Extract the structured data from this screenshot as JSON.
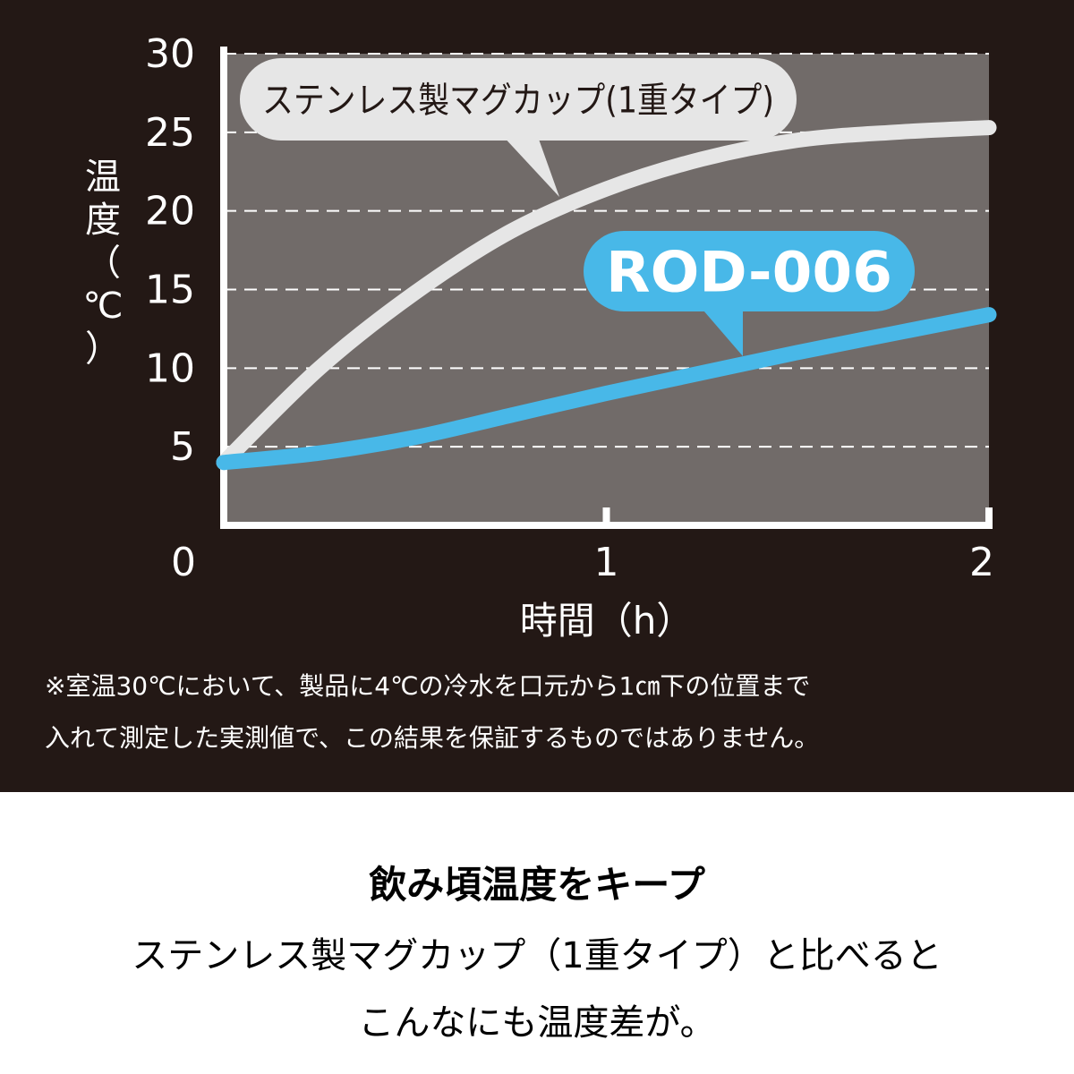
{
  "chart_data": {
    "type": "line",
    "xlabel": "時間（h）",
    "ylabel_chars": [
      "温",
      "度",
      "（",
      "℃",
      "）"
    ],
    "xlim": [
      0,
      2
    ],
    "ylim": [
      0,
      30
    ],
    "x_ticks": [
      0,
      1,
      2
    ],
    "y_ticks": [
      5,
      10,
      15,
      20,
      25,
      30
    ],
    "grid": "dashed horizontal",
    "series": [
      {
        "name": "ステンレス製マグカップ(1重タイプ)",
        "color": "#e6e6e6",
        "x": [
          0,
          0.25,
          0.5,
          0.75,
          1.0,
          1.25,
          1.5,
          1.75,
          2.0
        ],
        "y": [
          4,
          10,
          14.8,
          18.7,
          21.4,
          23.3,
          24.5,
          25.0,
          25.3
        ]
      },
      {
        "name": "ROD-006",
        "color": "#48b8e8",
        "x": [
          0,
          0.25,
          0.5,
          0.75,
          1.0,
          1.25,
          1.5,
          1.75,
          2.0
        ],
        "y": [
          4,
          4.6,
          5.6,
          7.0,
          8.4,
          9.7,
          11.0,
          12.2,
          13.4
        ]
      }
    ]
  },
  "note": {
    "line1": "※室温30℃において、製品に4℃の冷水を口元から1㎝下の位置まで",
    "line2": "入れて測定した実測値で、この結果を保証するものではありません。"
  },
  "caption": {
    "title": "飲み頃温度をキープ",
    "line1": "ステンレス製マグカップ（1重タイプ）と比べると",
    "line2": "こんなにも温度差が。"
  },
  "colors": {
    "background": "#231815",
    "plot_area": "#716b69",
    "axis": "#ffffff"
  }
}
